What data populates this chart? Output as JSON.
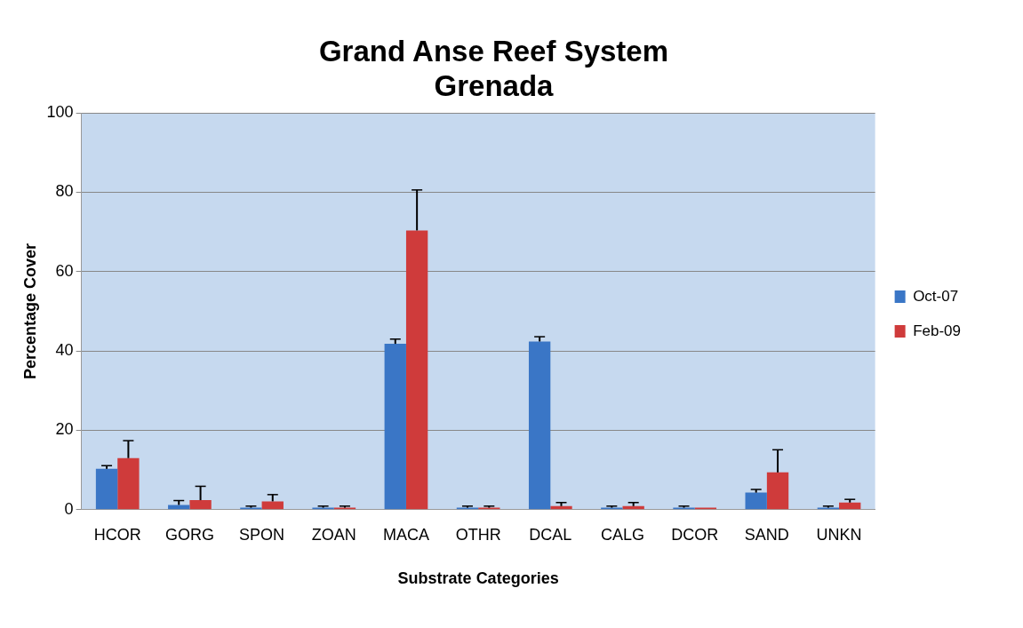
{
  "chart_data": {
    "type": "bar",
    "title": "Grand Anse Reef System\nGrenada",
    "xlabel": "Substrate Categories",
    "ylabel": "Percentage Cover",
    "categories": [
      "HCOR",
      "GORG",
      "SPON",
      "ZOAN",
      "MACA",
      "OTHR",
      "DCAL",
      "CALG",
      "DCOR",
      "SAND",
      "UNKN"
    ],
    "series": [
      {
        "name": "Oct-07",
        "color": "#3a76c6",
        "values": [
          10.3,
          1.2,
          0.5,
          0.5,
          41.8,
          0.5,
          42.4,
          0.5,
          0.5,
          4.3,
          0.5
        ],
        "errors": [
          [
            10.3,
            11.1
          ],
          [
            1.2,
            2.3
          ],
          [
            0.5,
            0.9
          ],
          [
            0.5,
            0.9
          ],
          [
            41.8,
            43.0
          ],
          [
            0.5,
            0.9
          ],
          [
            42.4,
            43.6
          ],
          [
            0.5,
            0.9
          ],
          [
            0.5,
            0.9
          ],
          [
            4.3,
            5.1
          ],
          [
            0.5,
            0.9
          ]
        ]
      },
      {
        "name": "Feb-09",
        "color": "#cf3b3b",
        "values": [
          13.0,
          2.4,
          2.1,
          0.5,
          70.4,
          0.5,
          0.9,
          0.9,
          0.5,
          9.4,
          1.8
        ],
        "errors": [
          [
            13.0,
            17.4
          ],
          [
            2.4,
            5.9
          ],
          [
            2.1,
            3.8
          ],
          [
            0.5,
            0.9
          ],
          [
            70.4,
            80.6
          ],
          [
            0.5,
            0.9
          ],
          [
            0.9,
            1.8
          ],
          [
            0.9,
            1.8
          ],
          null,
          [
            9.4,
            15.1
          ],
          [
            1.8,
            2.6
          ]
        ]
      }
    ],
    "ylim": [
      0,
      100
    ],
    "yticks": [
      0,
      20,
      40,
      60,
      80,
      100
    ],
    "grid": "y",
    "legend": "right"
  }
}
